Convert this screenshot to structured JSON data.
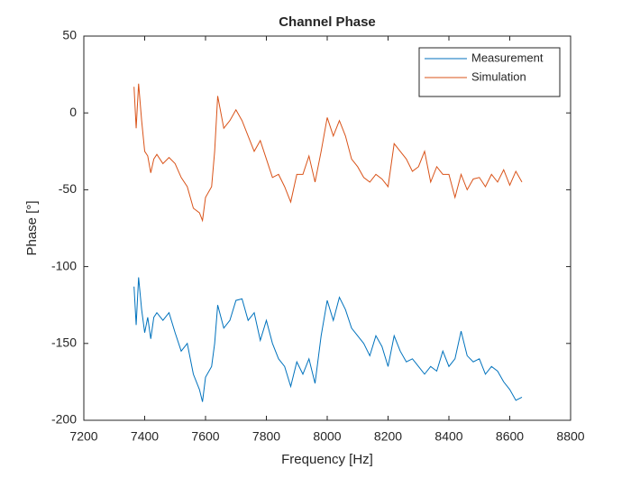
{
  "chart_data": {
    "type": "line",
    "title": "Channel Phase",
    "xlabel": "Frequency [Hz]",
    "ylabel": "Phase [°]",
    "x": [
      7365,
      7372,
      7380,
      7390,
      7400,
      7410,
      7420,
      7430,
      7440,
      7460,
      7480,
      7500,
      7520,
      7540,
      7560,
      7580,
      7590,
      7600,
      7620,
      7630,
      7640,
      7660,
      7680,
      7700,
      7720,
      7740,
      7760,
      7780,
      7800,
      7820,
      7840,
      7860,
      7880,
      7900,
      7920,
      7940,
      7960,
      7980,
      8000,
      8020,
      8040,
      8060,
      8080,
      8100,
      8120,
      8140,
      8160,
      8180,
      8200,
      8220,
      8240,
      8260,
      8280,
      8300,
      8320,
      8340,
      8360,
      8380,
      8400,
      8420,
      8440,
      8460,
      8480,
      8500,
      8520,
      8540,
      8560,
      8580,
      8600,
      8620,
      8640
    ],
    "series": [
      {
        "name": "Measurement",
        "color": "#0072bd",
        "values": [
          -113,
          -138,
          -107,
          -128,
          -143,
          -133,
          -147,
          -133,
          -130,
          -135,
          -130,
          -143,
          -155,
          -150,
          -170,
          -180,
          -188,
          -172,
          -165,
          -150,
          -125,
          -140,
          -135,
          -122,
          -121,
          -135,
          -130,
          -148,
          -135,
          -150,
          -160,
          -165,
          -178,
          -162,
          -170,
          -160,
          -176,
          -145,
          -122,
          -135,
          -120,
          -128,
          -140,
          -145,
          -150,
          -158,
          -145,
          -152,
          -165,
          -145,
          -155,
          -162,
          -160,
          -165,
          -170,
          -165,
          -168,
          -155,
          -165,
          -160,
          -142,
          -158,
          -162,
          -160,
          -170,
          -165,
          -168,
          -175,
          -180,
          -187,
          -185
        ]
      },
      {
        "name": "Simulation",
        "color": "#d95319",
        "values": [
          17,
          -10,
          19,
          -5,
          -25,
          -28,
          -39,
          -30,
          -27,
          -33,
          -29,
          -33,
          -42,
          -48,
          -62,
          -65,
          -70,
          -55,
          -48,
          -25,
          11,
          -10,
          -5,
          2,
          -5,
          -15,
          -25,
          -18,
          -30,
          -42,
          -40,
          -48,
          -58,
          -40,
          -40,
          -28,
          -45,
          -25,
          -3,
          -15,
          -5,
          -15,
          -30,
          -35,
          -42,
          -45,
          -40,
          -43,
          -48,
          -20,
          -25,
          -30,
          -38,
          -35,
          -25,
          -45,
          -35,
          -40,
          -40,
          -55,
          -40,
          -50,
          -43,
          -42,
          -48,
          -40,
          -45,
          -37,
          -47,
          -38,
          -45
        ]
      }
    ],
    "xlim": [
      7200,
      8800
    ],
    "xticks": [
      7200,
      7400,
      7600,
      7800,
      8000,
      8200,
      8400,
      8600,
      8800
    ],
    "ylim": [
      -200,
      50
    ],
    "yticks": [
      -200,
      -150,
      -100,
      -50,
      0,
      50
    ],
    "grid": false,
    "legend": "northeast"
  }
}
